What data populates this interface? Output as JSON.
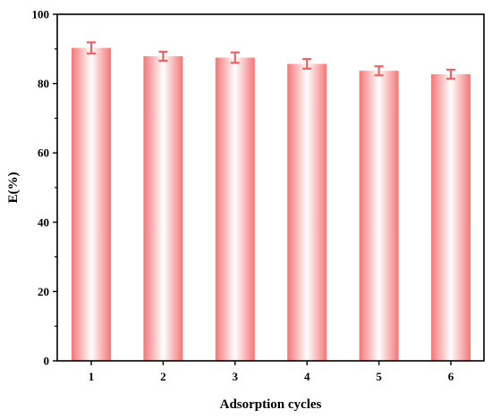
{
  "chart_data": {
    "type": "bar",
    "title": "",
    "xlabel": "Adsorption cycles",
    "ylabel": "E(%)",
    "categories": [
      "1",
      "2",
      "3",
      "4",
      "5",
      "6"
    ],
    "values": [
      90.3,
      87.9,
      87.5,
      85.7,
      83.7,
      82.7
    ],
    "error": [
      1.6,
      1.3,
      1.5,
      1.4,
      1.3,
      1.3
    ],
    "ylim": [
      0,
      100
    ],
    "yticks": [
      0,
      20,
      40,
      60,
      80,
      100
    ],
    "grid": false,
    "legend": "none",
    "colors": {
      "bar_edge": "#f47676",
      "bar_center": "#ffffff",
      "error_bar": "#f06060",
      "axis": "#000000"
    }
  }
}
